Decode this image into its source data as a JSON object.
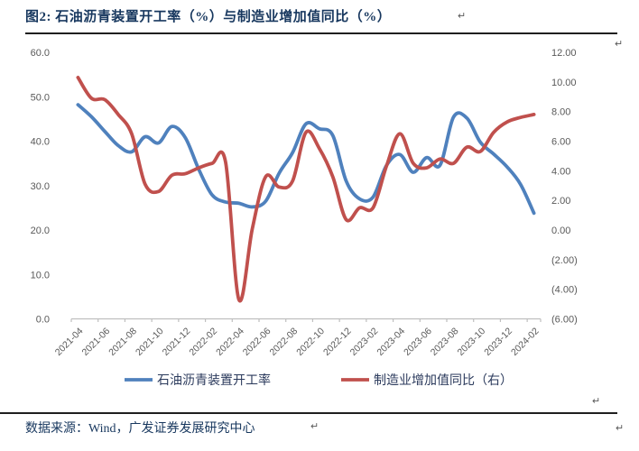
{
  "page": {
    "title": "图2:  石油沥青装置开工率（%）与制造业增加值同比（%）",
    "footer": "数据来源：Wind，广发证券发展研究中心",
    "return_mark": "↵"
  },
  "colors": {
    "blue_series": "#4F81BD",
    "red_series": "#C0504D",
    "axis_text": "#595959",
    "axis_line": "#BFBFBF",
    "title_text": "#17375E",
    "legend_text": "#2B3A5C",
    "rule": "#1F1F1F"
  },
  "chart_data": {
    "type": "line",
    "x": [
      "2021-04",
      "2021-05",
      "2021-06",
      "2021-07",
      "2021-08",
      "2021-09",
      "2021-10",
      "2021-11",
      "2021-12",
      "2022-01",
      "2022-02",
      "2022-03",
      "2022-04",
      "2022-05",
      "2022-06",
      "2022-07",
      "2022-08",
      "2022-09",
      "2022-10",
      "2022-11",
      "2022-12",
      "2023-01",
      "2023-02",
      "2023-03",
      "2023-04",
      "2023-05",
      "2023-06",
      "2023-07",
      "2023-08",
      "2023-09",
      "2023-10",
      "2023-11",
      "2023-12",
      "2024-01",
      "2024-02"
    ],
    "x_label_every": 2,
    "x_tick_labels": [
      "2021-04",
      "2021-06",
      "2021-08",
      "2021-10",
      "2021-12",
      "2022-02",
      "2022-04",
      "2022-06",
      "2022-08",
      "2022-10",
      "2022-12",
      "2023-02",
      "2023-04",
      "2023-06",
      "2023-08",
      "2023-10",
      "2023-12",
      "2024-02"
    ],
    "left_axis": {
      "min": 0,
      "max": 60,
      "tick_labels": [
        "60.0",
        "50.0",
        "40.0",
        "30.0",
        "20.0",
        "10.0",
        "0.0"
      ]
    },
    "right_axis": {
      "min": -6,
      "max": 12,
      "tick_labels": [
        "12.00",
        "10.00",
        "8.00",
        "6.00",
        "4.00",
        "2.00",
        "0.00",
        "(2.00)",
        "(4.00)",
        "(6.00)"
      ]
    },
    "grid": false,
    "legend_position": "bottom",
    "series": [
      {
        "name": "石油沥青装置开工率",
        "axis": "left",
        "color": "#4F81BD",
        "values": [
          48.2,
          45.5,
          42.2,
          39.0,
          37.6,
          41.0,
          39.6,
          43.3,
          40.8,
          33.7,
          27.9,
          26.3,
          26.0,
          25.2,
          26.5,
          32.8,
          37.4,
          43.9,
          42.8,
          41.3,
          31.0,
          27.0,
          27.4,
          34.5,
          37.0,
          33.0,
          36.3,
          34.6,
          45.4,
          45.2,
          39.8,
          37.1,
          34.2,
          30.3,
          23.8
        ]
      },
      {
        "name": "制造业增加值同比（右）",
        "axis": "right",
        "color": "#C0504D",
        "values": [
          10.3,
          8.9,
          8.8,
          7.8,
          6.5,
          3.1,
          2.6,
          3.7,
          3.8,
          4.2,
          4.5,
          4.6,
          -4.7,
          0.1,
          3.6,
          2.9,
          3.3,
          6.6,
          5.5,
          3.6,
          0.7,
          1.5,
          1.5,
          4.3,
          6.5,
          4.5,
          4.2,
          4.8,
          4.5,
          5.6,
          5.3,
          6.6,
          7.3,
          7.6,
          7.8
        ]
      }
    ]
  }
}
